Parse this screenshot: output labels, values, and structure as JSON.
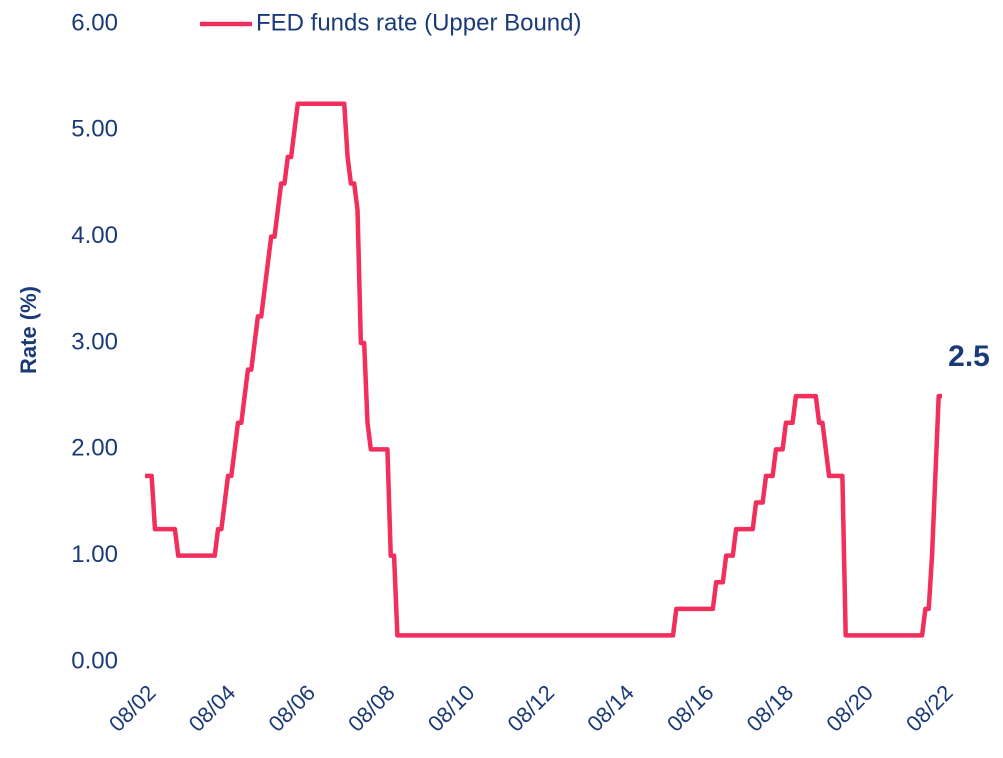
{
  "chart_data": {
    "type": "line",
    "y_label": "Rate (%)",
    "annotation": "2.5",
    "ylim": [
      0,
      6
    ],
    "yticks": [
      {
        "value": 0,
        "label": "0.00"
      },
      {
        "value": 1,
        "label": "1.00"
      },
      {
        "value": 2,
        "label": "2.00"
      },
      {
        "value": 3,
        "label": "3.00"
      },
      {
        "value": 4,
        "label": "4.00"
      },
      {
        "value": 5,
        "label": "5.00"
      },
      {
        "value": 6,
        "label": "6.00"
      }
    ],
    "xlim": [
      "2002-08",
      "2022-08"
    ],
    "xticks": [
      {
        "value": "2002-08",
        "label": "08/02"
      },
      {
        "value": "2004-08",
        "label": "08/04"
      },
      {
        "value": "2006-08",
        "label": "08/06"
      },
      {
        "value": "2008-08",
        "label": "08/08"
      },
      {
        "value": "2010-08",
        "label": "08/10"
      },
      {
        "value": "2012-08",
        "label": "08/12"
      },
      {
        "value": "2014-08",
        "label": "08/14"
      },
      {
        "value": "2016-08",
        "label": "08/16"
      },
      {
        "value": "2018-08",
        "label": "08/18"
      },
      {
        "value": "2020-08",
        "label": "08/20"
      },
      {
        "value": "2022-08",
        "label": "08/22"
      }
    ],
    "x": [
      "2002-08",
      "2002-10",
      "2002-11",
      "2003-05",
      "2003-06",
      "2004-05",
      "2004-06",
      "2004-07",
      "2004-08",
      "2004-09",
      "2004-10",
      "2004-11",
      "2004-12",
      "2005-01",
      "2005-02",
      "2005-03",
      "2005-04",
      "2005-05",
      "2005-06",
      "2005-07",
      "2005-08",
      "2005-09",
      "2005-10",
      "2005-11",
      "2005-12",
      "2006-01",
      "2006-02",
      "2006-03",
      "2006-04",
      "2006-05",
      "2006-06",
      "2007-08",
      "2007-09",
      "2007-10",
      "2007-11",
      "2007-12",
      "2008-01",
      "2008-02",
      "2008-03",
      "2008-04",
      "2008-09",
      "2008-10",
      "2008-11",
      "2008-12",
      "2015-11",
      "2015-12",
      "2016-11",
      "2016-12",
      "2017-02",
      "2017-03",
      "2017-05",
      "2017-06",
      "2017-11",
      "2017-12",
      "2018-02",
      "2018-03",
      "2018-05",
      "2018-06",
      "2018-08",
      "2018-09",
      "2018-11",
      "2018-12",
      "2019-06",
      "2019-07",
      "2019-08",
      "2019-09",
      "2019-10",
      "2020-02",
      "2020-03",
      "2022-02",
      "2022-03",
      "2022-04",
      "2022-05",
      "2022-06",
      "2022-07",
      "2022-08"
    ],
    "series": [
      {
        "name": "FED funds rate (Upper Bound)",
        "color": "#f22e5c",
        "values": [
          1.75,
          1.75,
          1.25,
          1.25,
          1.0,
          1.0,
          1.25,
          1.25,
          1.5,
          1.75,
          1.75,
          2.0,
          2.25,
          2.25,
          2.5,
          2.75,
          2.75,
          3.0,
          3.25,
          3.25,
          3.5,
          3.75,
          4.0,
          4.0,
          4.25,
          4.5,
          4.5,
          4.75,
          4.75,
          5.0,
          5.25,
          5.25,
          4.75,
          4.5,
          4.5,
          4.25,
          3.0,
          3.0,
          2.25,
          2.0,
          2.0,
          1.0,
          1.0,
          0.25,
          0.25,
          0.5,
          0.5,
          0.75,
          0.75,
          1.0,
          1.0,
          1.25,
          1.25,
          1.5,
          1.5,
          1.75,
          1.75,
          2.0,
          2.0,
          2.25,
          2.25,
          2.5,
          2.5,
          2.25,
          2.25,
          2.0,
          1.75,
          1.75,
          0.25,
          0.25,
          0.5,
          0.5,
          1.0,
          1.75,
          2.5,
          2.5
        ]
      }
    ]
  }
}
